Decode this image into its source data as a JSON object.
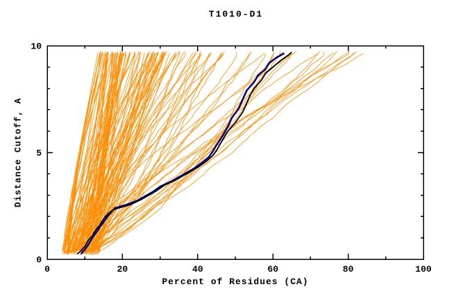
{
  "chart_data": {
    "type": "line",
    "title": "T1010-D1",
    "xlabel": "Percent of Residues (CA)",
    "ylabel": "Distance Cutoff, A",
    "xlim": [
      0,
      100
    ],
    "ylim": [
      0,
      10
    ],
    "x_ticks": [
      0,
      20,
      40,
      60,
      80,
      100
    ],
    "x_minor_step": 10,
    "y_ticks": [
      0,
      5,
      10
    ],
    "y_minor_step": 1,
    "frame": "box",
    "grid": "off",
    "legend": "none",
    "colors": {
      "background": "#FFFFFF",
      "axis": "#000000",
      "ensemble": "#FF8C00",
      "model_navy": "#000080",
      "model_black": "#000000"
    },
    "highlighted_series": [
      {
        "name": "best-model-navy",
        "color": "#000080",
        "width": 2.5,
        "points": [
          [
            9,
            0.25
          ],
          [
            10,
            0.45
          ],
          [
            11,
            0.7
          ],
          [
            12,
            1.0
          ],
          [
            13,
            1.25
          ],
          [
            14,
            1.5
          ],
          [
            15,
            1.75
          ],
          [
            16,
            2.0
          ],
          [
            17,
            2.2
          ],
          [
            18,
            2.4
          ],
          [
            21,
            2.55
          ],
          [
            24,
            2.75
          ],
          [
            26,
            2.95
          ],
          [
            28,
            3.15
          ],
          [
            30,
            3.4
          ],
          [
            33,
            3.65
          ],
          [
            35,
            3.85
          ],
          [
            37,
            4.05
          ],
          [
            39,
            4.25
          ],
          [
            41,
            4.5
          ],
          [
            43,
            4.8
          ],
          [
            44,
            5.05
          ],
          [
            45,
            5.35
          ],
          [
            46,
            5.6
          ],
          [
            47,
            5.9
          ],
          [
            48,
            6.2
          ],
          [
            49,
            6.6
          ],
          [
            51,
            7.1
          ],
          [
            52,
            7.5
          ],
          [
            53,
            7.9
          ],
          [
            55,
            8.3
          ],
          [
            56,
            8.6
          ],
          [
            58,
            8.9
          ],
          [
            59,
            9.2
          ],
          [
            61,
            9.45
          ],
          [
            63,
            9.65
          ]
        ]
      },
      {
        "name": "best-model-black",
        "color": "#000000",
        "width": 1.9,
        "points": [
          [
            8,
            0.25
          ],
          [
            9,
            0.4
          ],
          [
            10,
            0.6
          ],
          [
            11,
            0.9
          ],
          [
            12,
            1.1
          ],
          [
            13,
            1.4
          ],
          [
            14,
            1.6
          ],
          [
            15,
            1.9
          ],
          [
            16,
            2.1
          ],
          [
            17,
            2.25
          ],
          [
            18,
            2.35
          ],
          [
            22,
            2.55
          ],
          [
            25,
            2.8
          ],
          [
            27,
            3.0
          ],
          [
            29,
            3.2
          ],
          [
            31,
            3.45
          ],
          [
            34,
            3.7
          ],
          [
            36,
            3.9
          ],
          [
            38,
            4.1
          ],
          [
            40,
            4.3
          ],
          [
            42,
            4.55
          ],
          [
            44,
            4.85
          ],
          [
            45,
            5.1
          ],
          [
            46,
            5.4
          ],
          [
            47,
            5.7
          ],
          [
            48,
            6.0
          ],
          [
            50,
            6.4
          ],
          [
            52,
            6.9
          ],
          [
            53,
            7.3
          ],
          [
            54,
            7.7
          ],
          [
            55,
            8.0
          ],
          [
            57,
            8.4
          ],
          [
            58,
            8.7
          ],
          [
            60,
            9.0
          ],
          [
            62,
            9.3
          ],
          [
            64,
            9.55
          ],
          [
            65,
            9.7
          ]
        ]
      }
    ],
    "ensemble": {
      "name": "server-model-curves",
      "count": 130,
      "seed": 1337,
      "stroke_width": 0.8,
      "x_start_range": [
        4,
        14
      ],
      "y_start_range": [
        0.2,
        0.45
      ],
      "y_end_range": [
        9.6,
        9.75
      ],
      "end_x_buckets": [
        {
          "range": [
            13,
            32
          ],
          "weight": 0.55
        },
        {
          "range": [
            32,
            52
          ],
          "weight": 0.22
        },
        {
          "range": [
            52,
            72
          ],
          "weight": 0.15
        },
        {
          "range": [
            72,
            86
          ],
          "weight": 0.08
        }
      ],
      "shape_exponent_range": [
        0.55,
        1.6
      ]
    }
  }
}
